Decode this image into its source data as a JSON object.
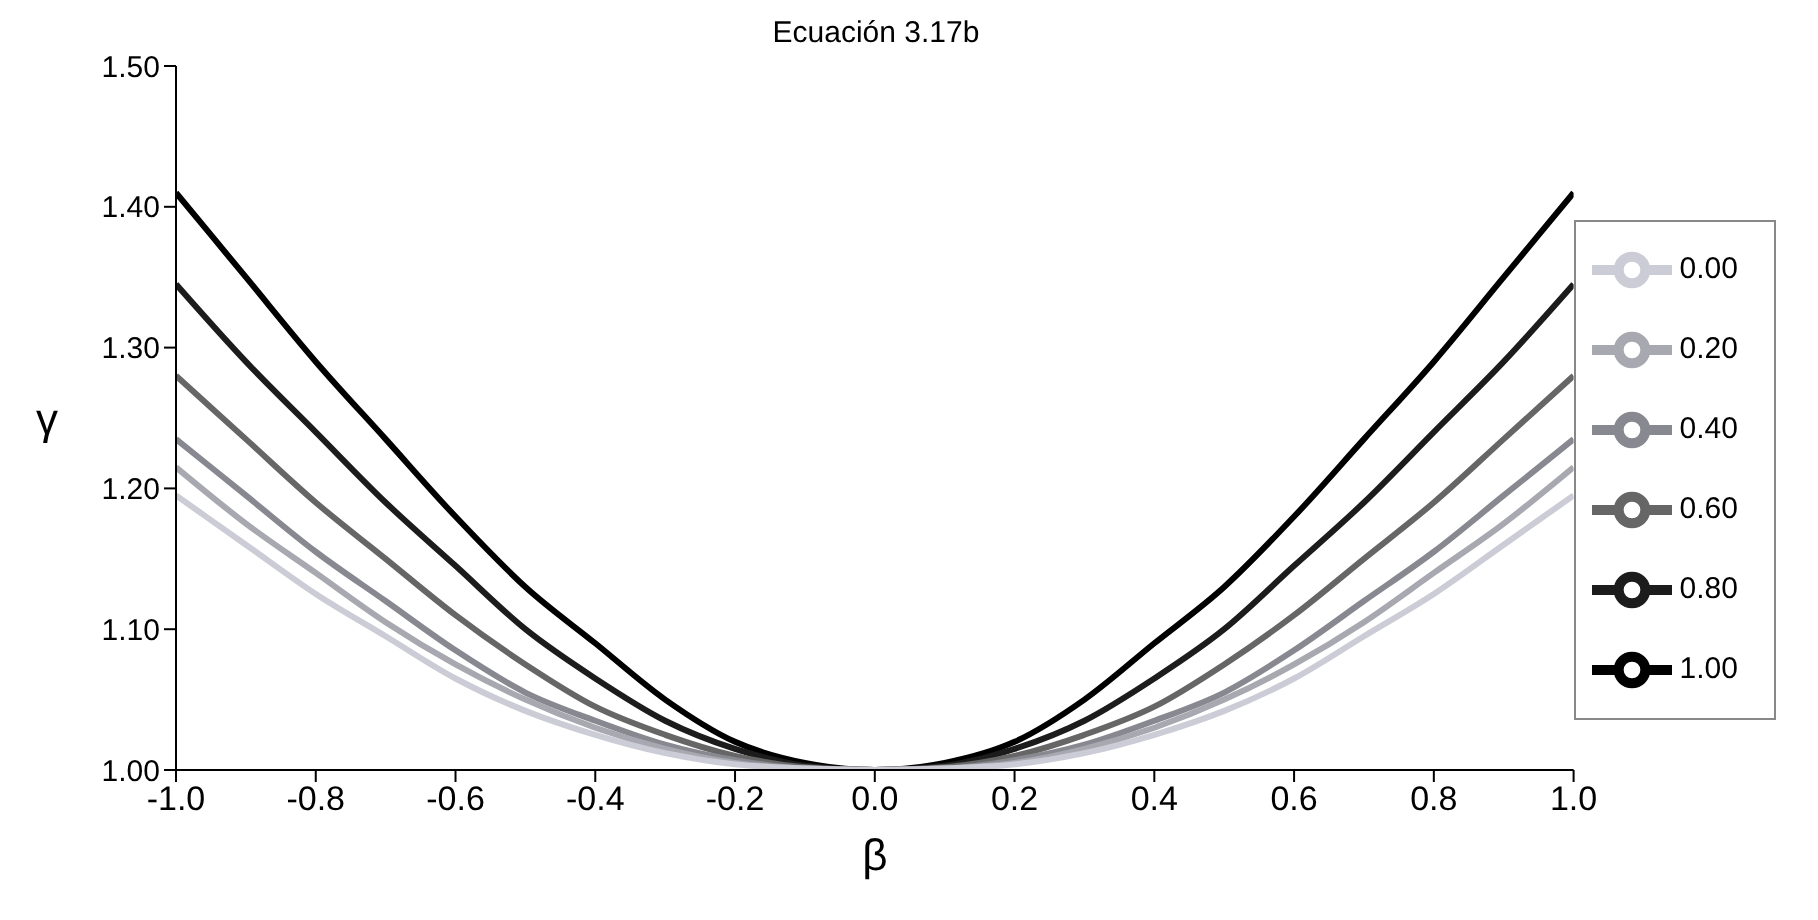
{
  "chart_data": {
    "type": "line",
    "title": "Ecuación 3.17b",
    "xlabel": "β",
    "ylabel": "γ",
    "x": [
      -1,
      -0.9,
      -0.8,
      -0.7,
      -0.6,
      -0.5,
      -0.4,
      -0.3,
      -0.2,
      -0.1,
      0,
      0.1,
      0.2,
      0.3,
      0.4,
      0.5,
      0.6,
      0.7,
      0.8,
      0.9,
      1
    ],
    "series": [
      {
        "name": "1.00",
        "color": "#000000",
        "values": [
          1.41,
          1.35,
          1.29,
          1.235,
          1.18,
          1.13,
          1.09,
          1.05,
          1.02,
          1.005,
          1,
          1.005,
          1.02,
          1.05,
          1.09,
          1.13,
          1.18,
          1.235,
          1.29,
          1.35,
          1.41
        ]
      },
      {
        "name": "0.80",
        "color": "#1c1c1c",
        "values": [
          1.345,
          1.29,
          1.24,
          1.19,
          1.145,
          1.1,
          1.065,
          1.035,
          1.015,
          1.003,
          1,
          1.003,
          1.015,
          1.035,
          1.065,
          1.1,
          1.145,
          1.19,
          1.24,
          1.29,
          1.345
        ]
      },
      {
        "name": "0.60",
        "color": "#666666",
        "values": [
          1.28,
          1.235,
          1.19,
          1.15,
          1.11,
          1.075,
          1.045,
          1.025,
          1.01,
          1.002,
          1,
          1.002,
          1.01,
          1.025,
          1.045,
          1.075,
          1.11,
          1.15,
          1.19,
          1.235,
          1.28
        ]
      },
      {
        "name": "0.40",
        "color": "#888890",
        "values": [
          1.235,
          1.195,
          1.155,
          1.12,
          1.085,
          1.055,
          1.035,
          1.018,
          1.007,
          1.001,
          1,
          1.001,
          1.007,
          1.018,
          1.035,
          1.055,
          1.085,
          1.12,
          1.155,
          1.195,
          1.235
        ]
      },
      {
        "name": "0.20",
        "color": "#a8a8b0",
        "values": [
          1.215,
          1.175,
          1.14,
          1.105,
          1.075,
          1.05,
          1.03,
          1.015,
          1.005,
          1.001,
          1,
          1.001,
          1.005,
          1.015,
          1.03,
          1.05,
          1.075,
          1.105,
          1.14,
          1.175,
          1.215
        ]
      },
      {
        "name": "0.00",
        "color": "#ccccd6",
        "values": [
          1.195,
          1.16,
          1.125,
          1.095,
          1.065,
          1.042,
          1.025,
          1.012,
          1.004,
          1.001,
          1,
          1.001,
          1.004,
          1.012,
          1.025,
          1.042,
          1.065,
          1.095,
          1.125,
          1.16,
          1.195
        ]
      }
    ],
    "xlim": [
      -1,
      1
    ],
    "xticks": [
      {
        "value": -1,
        "label": "-1.0"
      },
      {
        "value": -0.8,
        "label": "-0.8"
      },
      {
        "value": -0.6,
        "label": "-0.6"
      },
      {
        "value": -0.4,
        "label": "-0.4"
      },
      {
        "value": -0.2,
        "label": "-0.2"
      },
      {
        "value": 0,
        "label": "0.0"
      },
      {
        "value": 0.2,
        "label": "0.2"
      },
      {
        "value": 0.4,
        "label": "0.4"
      },
      {
        "value": 0.6,
        "label": "0.6"
      },
      {
        "value": 0.8,
        "label": "0.8"
      },
      {
        "value": 1,
        "label": "1.0"
      }
    ],
    "ylim": [
      1,
      1.5
    ],
    "yticks": [
      {
        "value": 1,
        "label": "1.00"
      },
      {
        "value": 1.1,
        "label": "1.10"
      },
      {
        "value": 1.2,
        "label": "1.20"
      },
      {
        "value": 1.3,
        "label": "1.30"
      },
      {
        "value": 1.4,
        "label": "1.40"
      },
      {
        "value": 1.5,
        "label": "1.50"
      }
    ],
    "grid": false,
    "legend": "right",
    "marker": "none",
    "line_style": "solid"
  }
}
